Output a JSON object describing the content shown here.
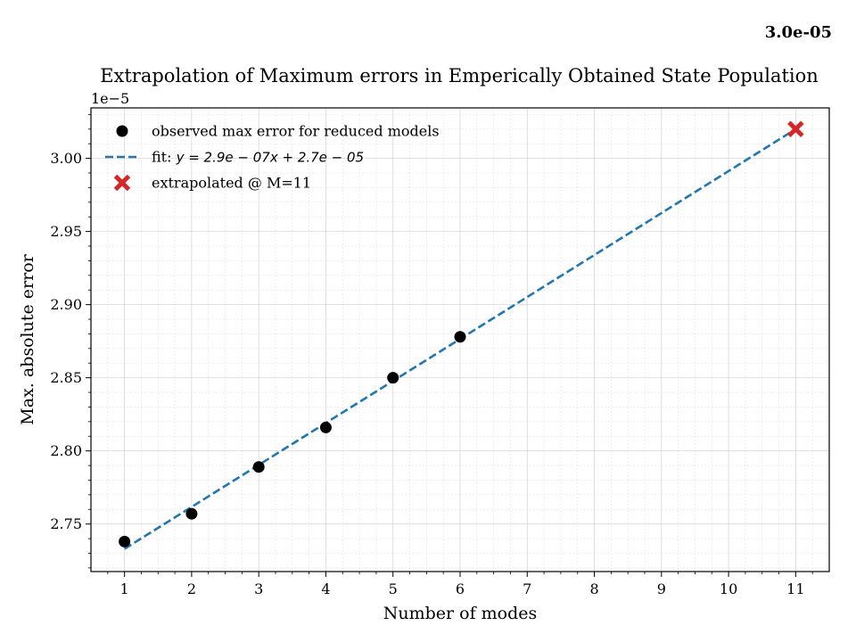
{
  "corner_value": "3.0e-05",
  "chart_data": {
    "type": "scatter",
    "title": "Extrapolation of Maximum errors in Emperically Obtained State Population",
    "xlabel": "Number of modes",
    "ylabel": "Max. absolute error",
    "y_offset_label": "1e−5",
    "xlim": [
      0.5,
      11.5
    ],
    "ylim": [
      2.7175,
      3.0345
    ],
    "y_scale_factor": 1e-05,
    "x_ticks": [
      1,
      2,
      3,
      4,
      5,
      6,
      7,
      8,
      9,
      10,
      11
    ],
    "y_ticks": [
      2.75,
      2.8,
      2.85,
      2.9,
      2.95,
      3.0
    ],
    "y_tick_labels": [
      "2.75",
      "2.80",
      "2.85",
      "2.90",
      "2.95",
      "3.00"
    ],
    "grid": true,
    "legend_position": "upper-left",
    "series": [
      {
        "name": "observed max error for reduced models",
        "kind": "scatter",
        "color": "#000000",
        "x": [
          1,
          2,
          3,
          4,
          5,
          6
        ],
        "y": [
          2.738,
          2.757,
          2.789,
          2.816,
          2.85,
          2.878
        ]
      },
      {
        "name": "fit: y = 2.9e−07x + 2.7e−05",
        "name_prefix": "fit: ",
        "name_math": "y = 2.9e − 07x + 2.7e − 05",
        "kind": "line",
        "style": "dashed",
        "color": "#1f77b4",
        "x": [
          1,
          11
        ],
        "y": [
          2.733,
          3.02
        ]
      },
      {
        "name": "extrapolated @ M=11",
        "kind": "marker-x",
        "color": "#d62728",
        "x": [
          11
        ],
        "y": [
          3.02
        ]
      }
    ]
  }
}
